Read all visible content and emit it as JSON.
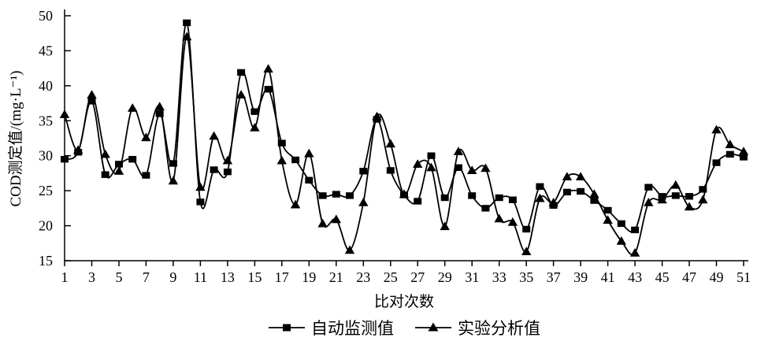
{
  "chart_data": {
    "type": "line",
    "title": "",
    "xlabel": "比对次数",
    "ylabel": "COD测定值/(mg·L⁻¹)",
    "xlim": [
      1,
      51
    ],
    "ylim": [
      15,
      50
    ],
    "grid": false,
    "legend_position": "bottom",
    "background": "#ffffff",
    "line_color": "#000000",
    "xticks": [
      1,
      3,
      5,
      7,
      9,
      11,
      13,
      15,
      17,
      19,
      21,
      23,
      25,
      27,
      29,
      31,
      33,
      35,
      37,
      39,
      41,
      43,
      45,
      47,
      49,
      51
    ],
    "yticks": [
      15,
      20,
      25,
      30,
      35,
      40,
      45,
      50
    ],
    "x": [
      1,
      2,
      3,
      4,
      5,
      6,
      7,
      8,
      9,
      10,
      11,
      12,
      13,
      14,
      15,
      16,
      17,
      18,
      19,
      20,
      21,
      22,
      23,
      24,
      25,
      26,
      27,
      28,
      29,
      30,
      31,
      32,
      33,
      34,
      35,
      36,
      37,
      38,
      39,
      40,
      41,
      42,
      43,
      44,
      45,
      46,
      47,
      48,
      49,
      50,
      51
    ],
    "series": [
      {
        "name": "自动监测值",
        "marker": "square",
        "values": [
          29.5,
          30.5,
          37.8,
          27.3,
          28.8,
          29.5,
          27.2,
          36.0,
          28.9,
          49.0,
          23.4,
          28.0,
          27.7,
          41.9,
          36.3,
          39.5,
          31.8,
          29.4,
          26.5,
          24.3,
          24.5,
          24.3,
          27.8,
          35.2,
          27.9,
          24.4,
          23.5,
          30.0,
          24.0,
          28.3,
          24.3,
          22.5,
          24.0,
          23.7,
          19.5,
          25.6,
          22.9,
          24.8,
          24.9,
          23.6,
          22.2,
          20.3,
          19.4,
          25.5,
          24.2,
          24.3,
          24.2,
          25.2,
          29.0,
          30.2,
          29.8
        ]
      },
      {
        "name": "实验分析值",
        "marker": "triangle",
        "values": [
          35.9,
          30.8,
          38.7,
          30.2,
          27.8,
          36.8,
          32.6,
          37.0,
          26.4,
          47.0,
          25.5,
          32.8,
          29.3,
          38.7,
          34.0,
          42.4,
          29.3,
          23.0,
          30.3,
          20.3,
          20.9,
          16.5,
          23.3,
          35.6,
          31.7,
          24.5,
          28.8,
          28.3,
          19.9,
          30.6,
          27.9,
          28.2,
          21.0,
          20.5,
          16.3,
          23.9,
          23.3,
          27.0,
          27.0,
          24.5,
          20.8,
          17.8,
          16.1,
          23.3,
          23.7,
          25.8,
          22.7,
          23.7,
          33.7,
          31.6,
          30.6
        ]
      }
    ]
  },
  "legend": {
    "series1_label": "自动监测值",
    "series2_label": "实验分析值"
  }
}
